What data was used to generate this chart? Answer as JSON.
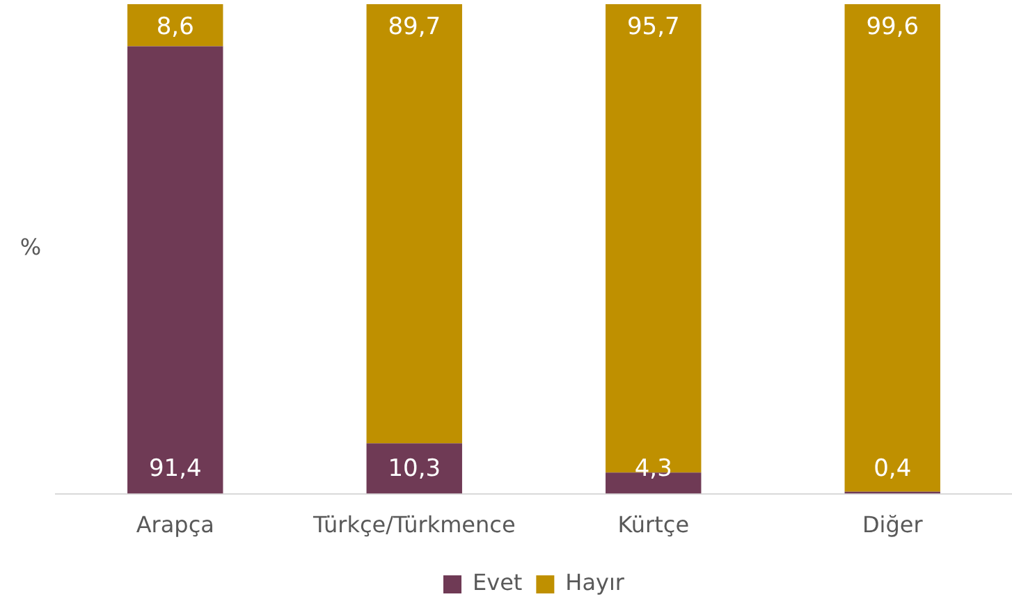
{
  "chart_data": {
    "type": "bar",
    "stacked": true,
    "ylabel": "%",
    "categories": [
      "Arapça",
      "Türkçe/Türkmence",
      "Kürtçe",
      "Diğer"
    ],
    "series": [
      {
        "name": "Evet",
        "color": "#6f3a55",
        "values": [
          91.4,
          10.3,
          4.3,
          0.4
        ],
        "value_labels": [
          "91,4",
          "10,3",
          "4,3",
          "0,4"
        ]
      },
      {
        "name": "Hayır",
        "color": "#bf9000",
        "values": [
          8.6,
          89.7,
          95.7,
          99.6
        ],
        "value_labels": [
          "8,6",
          "89,7",
          "95,7",
          "99,6"
        ]
      }
    ],
    "ylim": [
      0,
      100
    ],
    "tick_labels": "x",
    "grid": false,
    "legend": "bottom"
  }
}
